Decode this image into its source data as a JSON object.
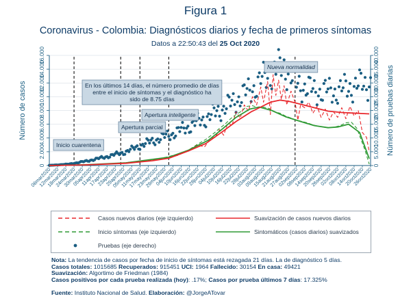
{
  "header": {
    "figure_label": "Figura 1",
    "title": "Coronavirus - Colombia: Diagnósticos diarios y fecha de primeros síntomas",
    "subtitle_prefix": "Datos a 22:50:43 del",
    "subtitle_date": "25 Oct 2020"
  },
  "colors": {
    "cases": "#e8262b",
    "cases_smooth": "#e8262b",
    "symptoms": "#2f9a35",
    "symptoms_smooth": "#2f9a35",
    "tests": "#1b5e82",
    "axis": "#1b5e82",
    "grid": "#cdd6df",
    "annotation_bg": "#c9d8e4",
    "annotation_border": "#6e8aa3"
  },
  "chart_data": {
    "type": "line",
    "x_type": "date",
    "ylabel_left": "Número de casos",
    "ylabel_right": "Número de pruebas diarias",
    "ylim_left": [
      0,
      16000
    ],
    "yticks_left": [
      0,
      2000,
      4000,
      6000,
      8000,
      10000,
      12000,
      14000,
      16000
    ],
    "ytick_labels_left": [
      "0",
      "2.000",
      "4.000",
      "6.000",
      "8.000",
      "10.000",
      "12.000",
      "14.000",
      "16.000"
    ],
    "ylim_right": [
      0,
      40000
    ],
    "yticks_right": [
      0,
      5000,
      10000,
      15000,
      20000,
      25000,
      30000,
      35000,
      40000
    ],
    "ytick_labels_right": [
      "0",
      "5.000",
      "10.000",
      "15.000",
      "20.000",
      "25.000",
      "30.000",
      "35.000",
      "40.000"
    ],
    "xlim": [
      "2020-03-06",
      "2020-10-26"
    ],
    "xtick_labels": [
      "06mar2020",
      "12mar2020",
      "18mar2020",
      "24mar2020",
      "30mar2020",
      "05apr2020",
      "11apr2020",
      "17apr2020",
      "23apr2020",
      "29apr2020",
      "05may2020",
      "11may2020",
      "17may2020",
      "23may2020",
      "29may2020",
      "04jun2020",
      "10jun2020",
      "16jun2020",
      "22jun2020",
      "28jun2020",
      "04jul2020",
      "10jul2020",
      "16jul2020",
      "22jul2020",
      "28jul2020",
      "03aug2020",
      "09aug2020",
      "15aug2020",
      "21aug2020",
      "27aug2020",
      "02sep2020",
      "08sep2020",
      "14sep2020",
      "20sep2020",
      "26sep2020",
      "02oct2020",
      "08oct2020",
      "14oct2020",
      "20oct2020",
      "26oct2020"
    ],
    "grid": true,
    "series": [
      {
        "name": "Casos nuevos diarios (eje izquierdo)",
        "axis": "left",
        "style": "dashed",
        "points": [
          [
            "2020-03-06",
            0
          ],
          [
            "2020-03-20",
            60
          ],
          [
            "2020-04-01",
            120
          ],
          [
            "2020-04-15",
            200
          ],
          [
            "2020-05-01",
            380
          ],
          [
            "2020-05-15",
            650
          ],
          [
            "2020-05-25",
            900
          ],
          [
            "2020-06-01",
            1100
          ],
          [
            "2020-06-08",
            1500
          ],
          [
            "2020-06-15",
            2200
          ],
          [
            "2020-06-22",
            3000
          ],
          [
            "2020-06-27",
            2700
          ],
          [
            "2020-07-01",
            3800
          ],
          [
            "2020-07-05",
            4200
          ],
          [
            "2020-07-08",
            5200
          ],
          [
            "2020-07-11",
            4400
          ],
          [
            "2020-07-14",
            6200
          ],
          [
            "2020-07-17",
            5800
          ],
          [
            "2020-07-20",
            7800
          ],
          [
            "2020-07-23",
            6900
          ],
          [
            "2020-07-26",
            8800
          ],
          [
            "2020-07-29",
            7900
          ],
          [
            "2020-08-01",
            10000
          ],
          [
            "2020-08-04",
            8800
          ],
          [
            "2020-08-07",
            11400
          ],
          [
            "2020-08-09",
            9200
          ],
          [
            "2020-08-12",
            12200
          ],
          [
            "2020-08-14",
            7400
          ],
          [
            "2020-08-16",
            13200
          ],
          [
            "2020-08-18",
            10200
          ],
          [
            "2020-08-20",
            12400
          ],
          [
            "2020-08-22",
            9600
          ],
          [
            "2020-08-24",
            11600
          ],
          [
            "2020-08-26",
            8800
          ],
          [
            "2020-08-29",
            10800
          ],
          [
            "2020-09-01",
            9200
          ],
          [
            "2020-09-03",
            6600
          ],
          [
            "2020-09-05",
            8800
          ],
          [
            "2020-09-08",
            8400
          ],
          [
            "2020-09-11",
            9200
          ],
          [
            "2020-09-14",
            7600
          ],
          [
            "2020-09-17",
            8600
          ],
          [
            "2020-09-20",
            7000
          ],
          [
            "2020-09-23",
            8200
          ],
          [
            "2020-09-26",
            6600
          ],
          [
            "2020-09-29",
            7800
          ],
          [
            "2020-10-02",
            7000
          ],
          [
            "2020-10-05",
            8400
          ],
          [
            "2020-10-08",
            6800
          ],
          [
            "2020-10-11",
            8600
          ],
          [
            "2020-10-14",
            7200
          ],
          [
            "2020-10-17",
            8000
          ],
          [
            "2020-10-20",
            4800
          ],
          [
            "2020-10-23",
            4100
          ],
          [
            "2020-10-25",
            2000
          ]
        ]
      },
      {
        "name": "Suavización de casos nuevos diarios",
        "axis": "left",
        "style": "solid",
        "points": [
          [
            "2020-03-06",
            0
          ],
          [
            "2020-04-01",
            90
          ],
          [
            "2020-05-01",
            330
          ],
          [
            "2020-05-20",
            700
          ],
          [
            "2020-06-01",
            1050
          ],
          [
            "2020-06-15",
            2100
          ],
          [
            "2020-06-28",
            3200
          ],
          [
            "2020-07-10",
            4900
          ],
          [
            "2020-07-20",
            6400
          ],
          [
            "2020-07-31",
            7800
          ],
          [
            "2020-08-07",
            8500
          ],
          [
            "2020-08-14",
            9200
          ],
          [
            "2020-08-21",
            9500
          ],
          [
            "2020-08-28",
            9300
          ],
          [
            "2020-09-05",
            8900
          ],
          [
            "2020-09-15",
            8400
          ],
          [
            "2020-09-25",
            7900
          ],
          [
            "2020-10-05",
            7700
          ],
          [
            "2020-10-15",
            7600
          ],
          [
            "2020-10-25",
            7500
          ]
        ]
      },
      {
        "name": "Inicio síntomas (eje izquierdo)",
        "axis": "left",
        "style": "dashed",
        "points": [
          [
            "2020-03-06",
            0
          ],
          [
            "2020-03-20",
            30
          ],
          [
            "2020-04-01",
            120
          ],
          [
            "2020-04-15",
            230
          ],
          [
            "2020-05-01",
            420
          ],
          [
            "2020-05-15",
            750
          ],
          [
            "2020-05-25",
            1000
          ],
          [
            "2020-06-01",
            1300
          ],
          [
            "2020-06-08",
            1700
          ],
          [
            "2020-06-15",
            2200
          ],
          [
            "2020-06-22",
            3100
          ],
          [
            "2020-06-28",
            3800
          ],
          [
            "2020-07-04",
            4700
          ],
          [
            "2020-07-08",
            5400
          ],
          [
            "2020-07-12",
            6000
          ],
          [
            "2020-07-16",
            6800
          ],
          [
            "2020-07-20",
            7400
          ],
          [
            "2020-07-24",
            7900
          ],
          [
            "2020-07-28",
            8600
          ],
          [
            "2020-08-01",
            8700
          ],
          [
            "2020-08-05",
            8400
          ],
          [
            "2020-08-09",
            8500
          ],
          [
            "2020-08-13",
            8300
          ],
          [
            "2020-08-17",
            7800
          ],
          [
            "2020-08-21",
            7600
          ],
          [
            "2020-08-25",
            7200
          ],
          [
            "2020-08-29",
            6900
          ],
          [
            "2020-09-02",
            6600
          ],
          [
            "2020-09-06",
            6400
          ],
          [
            "2020-09-10",
            6200
          ],
          [
            "2020-09-14",
            5900
          ],
          [
            "2020-09-18",
            5700
          ],
          [
            "2020-09-22",
            5600
          ],
          [
            "2020-09-26",
            5500
          ],
          [
            "2020-09-30",
            5600
          ],
          [
            "2020-10-04",
            5800
          ],
          [
            "2020-10-08",
            6200
          ],
          [
            "2020-10-12",
            6300
          ],
          [
            "2020-10-16",
            5400
          ],
          [
            "2020-10-19",
            3800
          ],
          [
            "2020-10-22",
            2200
          ],
          [
            "2020-10-25",
            200
          ]
        ]
      },
      {
        "name": "Sintomáticos (casos diarios) suavizados",
        "axis": "left",
        "style": "solid",
        "points": [
          [
            "2020-03-06",
            0
          ],
          [
            "2020-04-01",
            110
          ],
          [
            "2020-05-01",
            400
          ],
          [
            "2020-06-01",
            1200
          ],
          [
            "2020-06-15",
            2200
          ],
          [
            "2020-06-30",
            3700
          ],
          [
            "2020-07-10",
            5300
          ],
          [
            "2020-07-20",
            7000
          ],
          [
            "2020-07-30",
            8200
          ],
          [
            "2020-08-06",
            8500
          ],
          [
            "2020-08-15",
            8000
          ],
          [
            "2020-08-25",
            7100
          ],
          [
            "2020-09-05",
            6400
          ],
          [
            "2020-09-15",
            5800
          ],
          [
            "2020-09-25",
            5500
          ],
          [
            "2020-10-02",
            5600
          ],
          [
            "2020-10-10",
            6000
          ],
          [
            "2020-10-18",
            4800
          ],
          [
            "2020-10-25",
            1000
          ]
        ]
      },
      {
        "name": "Pruebas (eje derecho)",
        "axis": "right",
        "style": "markers",
        "anchors": [
          [
            "2020-03-06",
            50
          ],
          [
            "2020-03-20",
            500
          ],
          [
            "2020-04-01",
            1500
          ],
          [
            "2020-04-15",
            3000
          ],
          [
            "2020-05-01",
            5000
          ],
          [
            "2020-05-15",
            8000
          ],
          [
            "2020-06-01",
            11000
          ],
          [
            "2020-06-15",
            14000
          ],
          [
            "2020-07-01",
            18000
          ],
          [
            "2020-07-15",
            22000
          ],
          [
            "2020-08-01",
            28000
          ],
          [
            "2020-08-15",
            34000
          ],
          [
            "2020-08-24",
            36000
          ],
          [
            "2020-09-01",
            30000
          ],
          [
            "2020-09-15",
            27000
          ],
          [
            "2020-10-01",
            27000
          ],
          [
            "2020-10-15",
            29000
          ],
          [
            "2020-10-25",
            30000
          ]
        ]
      }
    ],
    "vlines": [
      "2020-03-24",
      "2020-04-27",
      "2020-05-11",
      "2020-06-01",
      "2020-09-01"
    ],
    "annotations": [
      {
        "text": "Inicio cuarentena",
        "date": "2020-03-24"
      },
      {
        "text": "Apertura parcial",
        "date": "2020-04-27"
      },
      {
        "text_pre": "Apertura ",
        "text_italic": "inteligente",
        "date": "2020-05-11"
      },
      {
        "lines": [
          "En los últimos 14 días, el número promedio de días",
          "entre el inicio de síntomas  y el diagnóstico ha",
          "sido de 8.75 días"
        ],
        "date": "2020-06-01"
      },
      {
        "text_italic": "Nueva normalidad",
        "date": "2020-09-01"
      }
    ]
  },
  "legend": {
    "cases": "Casos nuevos diarios (eje izquierdo)",
    "cases_smooth": "Suavización de casos nuevos diarios",
    "symptoms": "Inicio síntomas (eje izquierdo)",
    "symptoms_smooth": "Sintomáticos (casos diarios) suavizados",
    "tests": "Pruebas (eje derecho)"
  },
  "notes": {
    "line1_label": "Nota:",
    "line1_text": " La tendencia de casos por fecha de inicio de síntomas está rezagada 21 días. La de diagnóstico 5 días.",
    "totals_label": "Casos totales:",
    "totals_value": " 1015685 ",
    "recovered_label": "Recuperados:",
    "recovered_value": " 915451 ",
    "uci_label": "UCI:",
    "uci_value": " 1964 ",
    "deaths_label": "Fallecido:",
    "deaths_value": " 30154 ",
    "home_label": "En casa:",
    "home_value": " 49421",
    "smoothing_label": "Suavización:",
    "smoothing_value": " Algortimo de Friedman (1984)",
    "positive_label": "Casos positivos por cada prueba realizada (hoy)",
    "positive_value": ": .17%; ",
    "per_test_label": "Casos por prueba últimos 7 días",
    "per_test_value": ": 17.325%"
  },
  "source": {
    "label": "Fuente:",
    "text": " Instituto Nacional de Salud. ",
    "author_label": "Elaboración:",
    "author": " @JorgeATovar"
  }
}
